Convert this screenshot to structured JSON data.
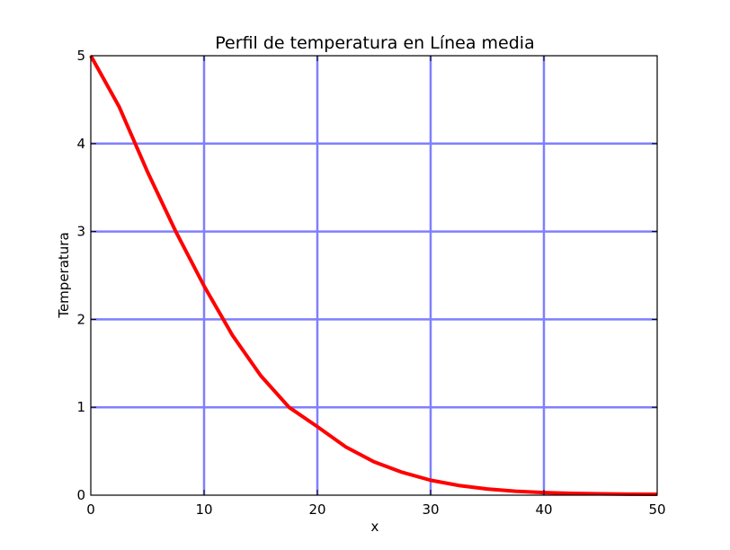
{
  "chart_data": {
    "type": "line",
    "title": "Perfil de temperatura en Línea media",
    "xlabel": "x",
    "ylabel": "Temperatura",
    "xlim": [
      0,
      50
    ],
    "ylim": [
      0,
      5
    ],
    "xticks": [
      0,
      10,
      20,
      30,
      40,
      50
    ],
    "yticks": [
      0,
      1,
      2,
      3,
      4,
      5
    ],
    "xtick_labels": [
      "0",
      "10",
      "20",
      "30",
      "40",
      "50"
    ],
    "ytick_labels": [
      "0",
      "1",
      "2",
      "3",
      "4",
      "5"
    ],
    "grid": true,
    "grid_color": "#7f7fff",
    "line_color": "#ff0000",
    "series": [
      {
        "x": [
          0,
          2.5,
          5,
          7.5,
          10,
          12.5,
          15,
          17.5,
          20,
          22.5,
          25,
          27.5,
          30,
          32.5,
          35,
          37.5,
          40,
          42.5,
          45,
          47.5,
          50
        ],
        "values": [
          5.0,
          4.42,
          3.68,
          3.0,
          2.38,
          1.82,
          1.36,
          1.0,
          0.78,
          0.55,
          0.38,
          0.26,
          0.17,
          0.11,
          0.07,
          0.045,
          0.03,
          0.02,
          0.015,
          0.012,
          0.01
        ]
      }
    ]
  }
}
